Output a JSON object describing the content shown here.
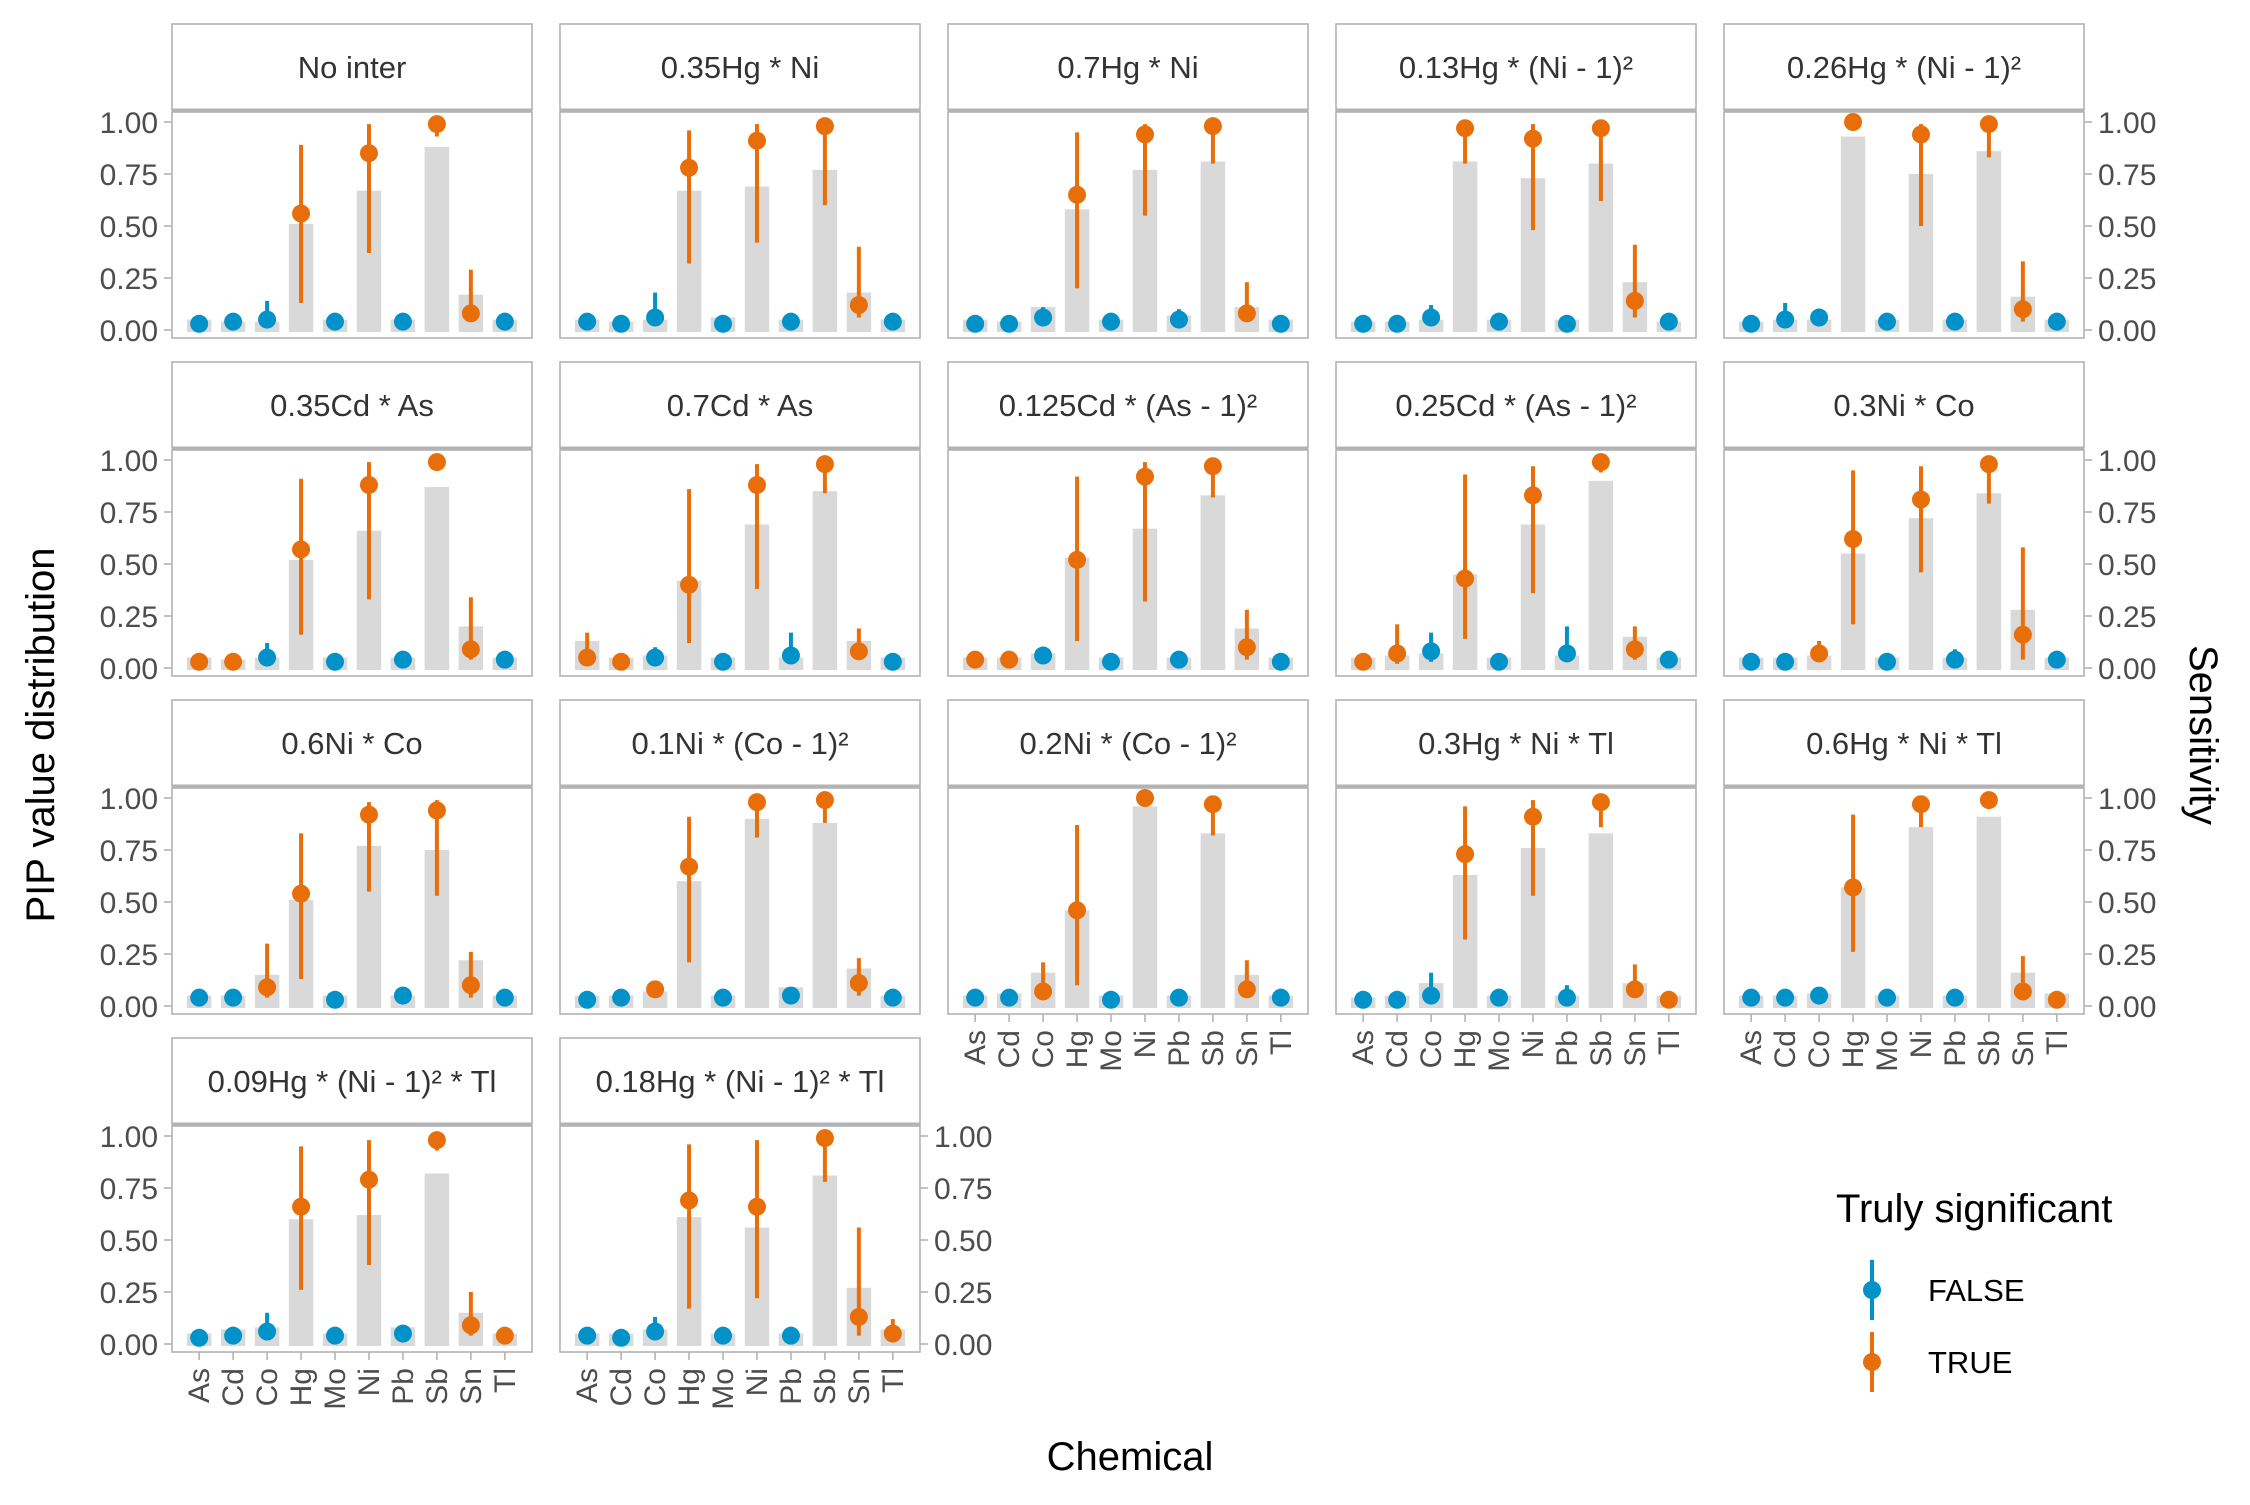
{
  "chart_data": {
    "type": "bar",
    "ylabel": "PIP value distribution",
    "ylabel_right": "Sensitivity",
    "xlabel": "Chemical",
    "categories": [
      "As",
      "Cd",
      "Co",
      "Hg",
      "Mo",
      "Ni",
      "Pb",
      "Sb",
      "Sn",
      "Tl"
    ],
    "y_ticks": [
      "0.00",
      "0.25",
      "0.50",
      "0.75",
      "1.00"
    ],
    "ylim": [
      0,
      1
    ],
    "grid": false,
    "legend": {
      "title": "Truly significant",
      "position": "bottom-right",
      "entries": [
        {
          "label": "FALSE",
          "color": "#0092c8"
        },
        {
          "label": "TRUE",
          "color": "#e86e0a"
        }
      ]
    },
    "bar_color": "#d9d9d9",
    "panels": [
      {
        "title": "No inter",
        "sensitivity": [
          0.05,
          0.04,
          0.04,
          0.51,
          0.05,
          0.67,
          0.05,
          0.88,
          0.17,
          0.05
        ],
        "pip": [
          0.03,
          0.04,
          0.05,
          0.56,
          0.04,
          0.85,
          0.04,
          0.99,
          0.08,
          0.04
        ],
        "lo": [
          0.02,
          0.02,
          0.02,
          0.13,
          0.02,
          0.37,
          0.02,
          0.93,
          0.04,
          0.02
        ],
        "hi": [
          0.05,
          0.06,
          0.14,
          0.89,
          0.08,
          0.99,
          0.06,
          1.0,
          0.29,
          0.06
        ]
      },
      {
        "title": "0.35Hg * Ni",
        "sensitivity": [
          0.05,
          0.04,
          0.05,
          0.67,
          0.06,
          0.69,
          0.05,
          0.77,
          0.18,
          0.05
        ],
        "pip": [
          0.04,
          0.03,
          0.06,
          0.78,
          0.03,
          0.91,
          0.04,
          0.98,
          0.12,
          0.04
        ],
        "lo": [
          0.02,
          0.02,
          0.02,
          0.32,
          0.02,
          0.42,
          0.02,
          0.6,
          0.06,
          0.02
        ],
        "hi": [
          0.08,
          0.05,
          0.18,
          0.96,
          0.05,
          0.99,
          0.06,
          1.0,
          0.4,
          0.06
        ]
      },
      {
        "title": "0.7Hg * Ni",
        "sensitivity": [
          0.05,
          0.04,
          0.11,
          0.58,
          0.05,
          0.77,
          0.07,
          0.81,
          0.11,
          0.05
        ],
        "pip": [
          0.03,
          0.03,
          0.06,
          0.65,
          0.04,
          0.94,
          0.05,
          0.98,
          0.08,
          0.03
        ],
        "lo": [
          0.02,
          0.02,
          0.03,
          0.2,
          0.02,
          0.55,
          0.02,
          0.8,
          0.04,
          0.02
        ],
        "hi": [
          0.05,
          0.05,
          0.11,
          0.95,
          0.06,
          0.99,
          0.1,
          1.0,
          0.23,
          0.05
        ]
      },
      {
        "title": "0.13Hg * (Ni - 1)²",
        "sensitivity": [
          0.04,
          0.04,
          0.05,
          0.81,
          0.05,
          0.73,
          0.05,
          0.8,
          0.23,
          0.04
        ],
        "pip": [
          0.03,
          0.03,
          0.06,
          0.97,
          0.04,
          0.92,
          0.03,
          0.97,
          0.14,
          0.04
        ],
        "lo": [
          0.02,
          0.02,
          0.03,
          0.8,
          0.02,
          0.48,
          0.02,
          0.62,
          0.06,
          0.02
        ],
        "hi": [
          0.05,
          0.05,
          0.12,
          1.0,
          0.06,
          0.99,
          0.05,
          1.0,
          0.41,
          0.06
        ]
      },
      {
        "title": "0.26Hg * (Ni - 1)²",
        "sensitivity": [
          0.04,
          0.05,
          0.05,
          0.93,
          0.05,
          0.75,
          0.05,
          0.86,
          0.16,
          0.05
        ],
        "pip": [
          0.03,
          0.05,
          0.06,
          1.0,
          0.04,
          0.94,
          0.04,
          0.99,
          0.1,
          0.04
        ],
        "lo": [
          0.02,
          0.02,
          0.03,
          0.98,
          0.02,
          0.5,
          0.02,
          0.83,
          0.04,
          0.02
        ],
        "hi": [
          0.05,
          0.13,
          0.09,
          1.0,
          0.06,
          0.99,
          0.06,
          1.0,
          0.33,
          0.06
        ]
      },
      {
        "title": "0.35Cd * As",
        "sensitivity": [
          0.05,
          0.04,
          0.05,
          0.52,
          0.05,
          0.66,
          0.05,
          0.87,
          0.2,
          0.05
        ],
        "pip": [
          0.03,
          0.03,
          0.05,
          0.57,
          0.03,
          0.88,
          0.04,
          0.99,
          0.09,
          0.04
        ],
        "lo": [
          0.02,
          0.02,
          0.02,
          0.16,
          0.02,
          0.33,
          0.02,
          0.95,
          0.04,
          0.02
        ],
        "hi": [
          0.05,
          0.05,
          0.12,
          0.91,
          0.05,
          0.99,
          0.06,
          1.0,
          0.34,
          0.06
        ]
      },
      {
        "title": "0.7Cd * As",
        "sensitivity": [
          0.13,
          0.05,
          0.06,
          0.42,
          0.05,
          0.69,
          0.05,
          0.85,
          0.13,
          0.05
        ],
        "pip": [
          0.05,
          0.03,
          0.05,
          0.4,
          0.03,
          0.88,
          0.06,
          0.98,
          0.08,
          0.03
        ],
        "lo": [
          0.02,
          0.02,
          0.02,
          0.12,
          0.02,
          0.38,
          0.02,
          0.84,
          0.04,
          0.02
        ],
        "hi": [
          0.17,
          0.05,
          0.1,
          0.86,
          0.05,
          0.98,
          0.17,
          1.0,
          0.19,
          0.05
        ]
      },
      {
        "title": "0.125Cd * (As - 1)²",
        "sensitivity": [
          0.05,
          0.05,
          0.07,
          0.53,
          0.05,
          0.67,
          0.05,
          0.83,
          0.19,
          0.05
        ],
        "pip": [
          0.04,
          0.04,
          0.06,
          0.52,
          0.03,
          0.92,
          0.04,
          0.97,
          0.1,
          0.03
        ],
        "lo": [
          0.02,
          0.02,
          0.03,
          0.13,
          0.02,
          0.32,
          0.02,
          0.82,
          0.04,
          0.02
        ],
        "hi": [
          0.06,
          0.06,
          0.09,
          0.92,
          0.05,
          0.99,
          0.06,
          1.0,
          0.28,
          0.05
        ]
      },
      {
        "title": "0.25Cd * (As - 1)²",
        "sensitivity": [
          0.05,
          0.06,
          0.07,
          0.45,
          0.05,
          0.69,
          0.06,
          0.9,
          0.15,
          0.05
        ],
        "pip": [
          0.03,
          0.07,
          0.08,
          0.43,
          0.03,
          0.83,
          0.07,
          0.99,
          0.09,
          0.04
        ],
        "lo": [
          0.02,
          0.02,
          0.03,
          0.14,
          0.02,
          0.36,
          0.03,
          0.94,
          0.04,
          0.02
        ],
        "hi": [
          0.05,
          0.21,
          0.17,
          0.93,
          0.05,
          0.97,
          0.2,
          1.0,
          0.2,
          0.06
        ]
      },
      {
        "title": "0.3Ni * Co",
        "sensitivity": [
          0.05,
          0.05,
          0.06,
          0.55,
          0.05,
          0.72,
          0.05,
          0.84,
          0.28,
          0.05
        ],
        "pip": [
          0.03,
          0.03,
          0.07,
          0.62,
          0.03,
          0.81,
          0.04,
          0.98,
          0.16,
          0.04
        ],
        "lo": [
          0.02,
          0.02,
          0.03,
          0.21,
          0.02,
          0.46,
          0.02,
          0.79,
          0.04,
          0.02
        ],
        "hi": [
          0.05,
          0.05,
          0.13,
          0.95,
          0.05,
          0.97,
          0.09,
          1.0,
          0.58,
          0.06
        ]
      },
      {
        "title": "0.6Ni * Co",
        "sensitivity": [
          0.05,
          0.05,
          0.15,
          0.51,
          0.05,
          0.77,
          0.05,
          0.75,
          0.22,
          0.05
        ],
        "pip": [
          0.04,
          0.04,
          0.09,
          0.54,
          0.03,
          0.92,
          0.05,
          0.94,
          0.1,
          0.04
        ],
        "lo": [
          0.02,
          0.02,
          0.04,
          0.13,
          0.02,
          0.55,
          0.02,
          0.53,
          0.04,
          0.02
        ],
        "hi": [
          0.06,
          0.06,
          0.3,
          0.83,
          0.05,
          0.98,
          0.08,
          0.99,
          0.26,
          0.06
        ]
      },
      {
        "title": "0.1Ni * (Co - 1)²",
        "sensitivity": [
          0.05,
          0.05,
          0.07,
          0.6,
          0.05,
          0.9,
          0.09,
          0.88,
          0.18,
          0.05
        ],
        "pip": [
          0.03,
          0.04,
          0.08,
          0.67,
          0.04,
          0.98,
          0.05,
          0.99,
          0.11,
          0.04
        ],
        "lo": [
          0.02,
          0.02,
          0.04,
          0.21,
          0.02,
          0.81,
          0.02,
          0.88,
          0.05,
          0.02
        ],
        "hi": [
          0.05,
          0.06,
          0.12,
          0.91,
          0.06,
          1.0,
          0.08,
          1.0,
          0.23,
          0.06
        ]
      },
      {
        "title": "0.2Ni * (Co - 1)²",
        "sensitivity": [
          0.05,
          0.06,
          0.16,
          0.46,
          0.05,
          0.96,
          0.05,
          0.83,
          0.15,
          0.05
        ],
        "pip": [
          0.04,
          0.04,
          0.07,
          0.46,
          0.03,
          1.0,
          0.04,
          0.97,
          0.08,
          0.04
        ],
        "lo": [
          0.02,
          0.02,
          0.03,
          0.1,
          0.02,
          0.97,
          0.02,
          0.82,
          0.04,
          0.02
        ],
        "hi": [
          0.06,
          0.06,
          0.21,
          0.87,
          0.05,
          1.0,
          0.06,
          1.0,
          0.22,
          0.06
        ]
      },
      {
        "title": "0.3Hg * Ni * Tl",
        "sensitivity": [
          0.04,
          0.05,
          0.11,
          0.63,
          0.05,
          0.76,
          0.05,
          0.83,
          0.11,
          0.05
        ],
        "pip": [
          0.03,
          0.03,
          0.05,
          0.73,
          0.04,
          0.91,
          0.04,
          0.98,
          0.08,
          0.03
        ],
        "lo": [
          0.02,
          0.02,
          0.02,
          0.32,
          0.02,
          0.53,
          0.02,
          0.86,
          0.04,
          0.02
        ],
        "hi": [
          0.05,
          0.05,
          0.16,
          0.96,
          0.06,
          0.99,
          0.1,
          1.0,
          0.2,
          0.05
        ]
      },
      {
        "title": "0.6Hg * Ni * Tl",
        "sensitivity": [
          0.05,
          0.05,
          0.06,
          0.57,
          0.05,
          0.86,
          0.05,
          0.91,
          0.16,
          0.06
        ],
        "pip": [
          0.04,
          0.04,
          0.05,
          0.57,
          0.04,
          0.97,
          0.04,
          0.99,
          0.07,
          0.03
        ],
        "lo": [
          0.02,
          0.02,
          0.03,
          0.26,
          0.02,
          0.86,
          0.02,
          0.95,
          0.03,
          0.02
        ],
        "hi": [
          0.06,
          0.06,
          0.08,
          0.92,
          0.06,
          1.0,
          0.06,
          1.0,
          0.24,
          0.05
        ]
      },
      {
        "title": "0.09Hg * (Ni - 1)² * Tl",
        "sensitivity": [
          0.05,
          0.07,
          0.08,
          0.6,
          0.05,
          0.62,
          0.08,
          0.82,
          0.15,
          0.05
        ],
        "pip": [
          0.03,
          0.04,
          0.06,
          0.66,
          0.04,
          0.79,
          0.05,
          0.98,
          0.09,
          0.04
        ],
        "lo": [
          0.02,
          0.02,
          0.02,
          0.26,
          0.02,
          0.38,
          0.02,
          0.93,
          0.04,
          0.02
        ],
        "hi": [
          0.05,
          0.08,
          0.15,
          0.95,
          0.06,
          0.98,
          0.09,
          1.0,
          0.25,
          0.06
        ]
      },
      {
        "title": "0.18Hg * (Ni - 1)² * Tl",
        "sensitivity": [
          0.05,
          0.05,
          0.07,
          0.61,
          0.05,
          0.56,
          0.05,
          0.81,
          0.27,
          0.07
        ],
        "pip": [
          0.04,
          0.03,
          0.06,
          0.69,
          0.04,
          0.66,
          0.04,
          0.99,
          0.13,
          0.05
        ],
        "lo": [
          0.02,
          0.02,
          0.03,
          0.17,
          0.02,
          0.22,
          0.02,
          0.78,
          0.04,
          0.02
        ],
        "hi": [
          0.06,
          0.05,
          0.13,
          0.96,
          0.06,
          0.98,
          0.06,
          1.0,
          0.56,
          0.12
        ]
      }
    ]
  }
}
